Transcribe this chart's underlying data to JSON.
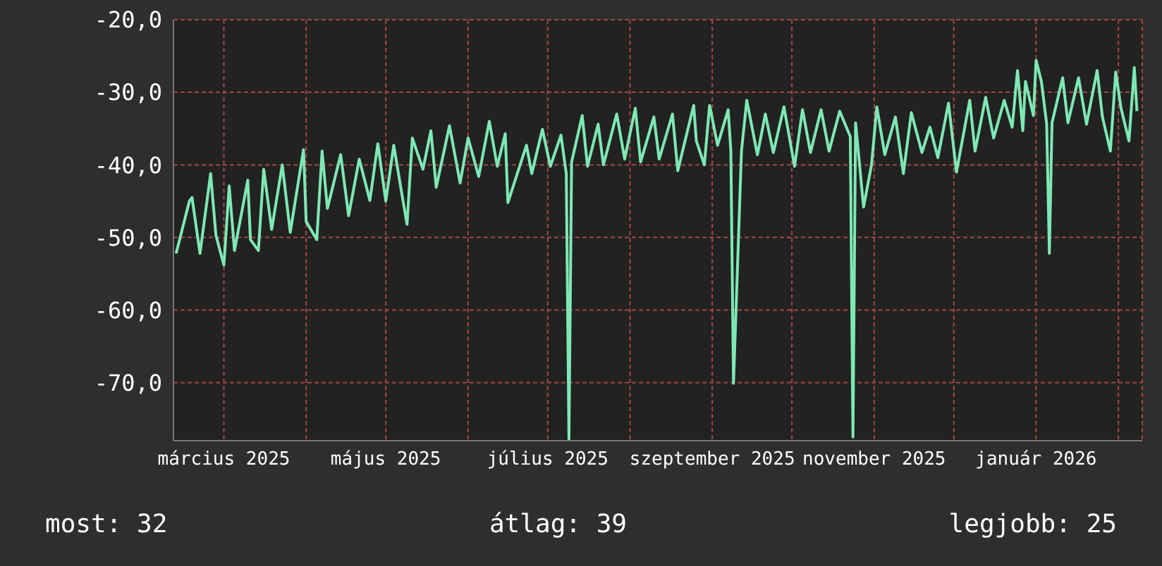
{
  "chart_data": {
    "type": "line",
    "x": [
      "2025-02-11",
      "2025-02-16",
      "2025-02-17",
      "2025-02-20",
      "2025-02-24",
      "2025-02-26",
      "2025-03-01",
      "2025-03-03",
      "2025-03-05",
      "2025-03-10",
      "2025-03-11",
      "2025-03-14",
      "2025-03-16",
      "2025-03-19",
      "2025-03-23",
      "2025-03-26",
      "2025-03-31",
      "2025-04-01",
      "2025-04-05",
      "2025-04-07",
      "2025-04-09",
      "2025-04-14",
      "2025-04-17",
      "2025-04-21",
      "2025-04-25",
      "2025-04-28",
      "2025-05-01",
      "2025-05-04",
      "2025-05-07",
      "2025-05-09",
      "2025-05-11",
      "2025-05-15",
      "2025-05-18",
      "2025-05-20",
      "2025-05-25",
      "2025-05-29",
      "2025-06-01",
      "2025-06-05",
      "2025-06-09",
      "2025-06-12",
      "2025-06-15",
      "2025-06-16",
      "2025-06-23",
      "2025-06-25",
      "2025-06-29",
      "2025-07-02",
      "2025-07-06",
      "2025-07-08",
      "2025-07-09",
      "2025-07-10",
      "2025-07-14",
      "2025-07-16",
      "2025-07-20",
      "2025-07-22",
      "2025-07-27",
      "2025-07-30",
      "2025-08-03",
      "2025-08-05",
      "2025-08-10",
      "2025-08-12",
      "2025-08-17",
      "2025-08-19",
      "2025-08-25",
      "2025-08-26",
      "2025-08-29",
      "2025-08-31",
      "2025-09-03",
      "2025-09-07",
      "2025-09-08",
      "2025-09-09",
      "2025-09-12",
      "2025-09-14",
      "2025-09-18",
      "2025-09-21",
      "2025-09-24",
      "2025-09-28",
      "2025-10-02",
      "2025-10-05",
      "2025-10-08",
      "2025-10-12",
      "2025-10-15",
      "2025-10-19",
      "2025-10-23",
      "2025-10-24",
      "2025-10-25",
      "2025-10-28",
      "2025-10-31",
      "2025-11-02",
      "2025-11-05",
      "2025-11-09",
      "2025-11-12",
      "2025-11-15",
      "2025-11-19",
      "2025-11-22",
      "2025-11-25",
      "2025-11-29",
      "2025-12-02",
      "2025-12-07",
      "2025-12-09",
      "2025-12-13",
      "2025-12-16",
      "2025-12-20",
      "2025-12-23",
      "2025-12-25",
      "2025-12-27",
      "2025-12-28",
      "2025-12-31",
      "2026-01-01",
      "2026-01-03",
      "2026-01-05",
      "2026-01-06",
      "2026-01-07",
      "2026-01-11",
      "2026-01-13",
      "2026-01-17",
      "2026-01-20",
      "2026-01-24",
      "2026-01-26",
      "2026-01-29",
      "2026-01-31",
      "2026-02-02",
      "2026-02-05",
      "2026-02-07",
      "2026-02-08"
    ],
    "series": [
      {
        "color": "#7ee8b4",
        "values": [
          -52.2,
          -45.0,
          -44.5,
          -52.2,
          -41.2,
          -49.7,
          -53.8,
          -42.9,
          -51.8,
          -42.1,
          -50.3,
          -51.8,
          -40.6,
          -48.9,
          -40.0,
          -49.3,
          -37.9,
          -47.8,
          -50.3,
          -38.1,
          -46.0,
          -38.6,
          -47.0,
          -39.2,
          -44.9,
          -37.1,
          -45.0,
          -37.3,
          -43.9,
          -48.2,
          -36.3,
          -40.6,
          -35.3,
          -43.1,
          -34.6,
          -42.5,
          -36.3,
          -41.6,
          -34.0,
          -40.2,
          -35.7,
          -45.2,
          -37.3,
          -41.2,
          -35.1,
          -40.2,
          -35.9,
          -41.2,
          -77.8,
          -39.6,
          -33.2,
          -40.2,
          -34.4,
          -40.0,
          -33.0,
          -39.2,
          -32.2,
          -39.6,
          -33.4,
          -39.2,
          -33.0,
          -40.8,
          -31.8,
          -36.7,
          -40.0,
          -31.8,
          -37.3,
          -32.4,
          -38.1,
          -70.1,
          -38.1,
          -31.1,
          -38.6,
          -33.0,
          -38.3,
          -32.0,
          -40.2,
          -32.4,
          -38.3,
          -32.4,
          -38.1,
          -32.6,
          -36.1,
          -77.5,
          -34.2,
          -45.8,
          -40.0,
          -32.0,
          -38.6,
          -33.4,
          -41.2,
          -32.8,
          -38.3,
          -34.8,
          -39.0,
          -31.5,
          -41.0,
          -31.1,
          -38.1,
          -30.7,
          -36.3,
          -31.1,
          -34.8,
          -27.0,
          -35.3,
          -28.5,
          -33.2,
          -25.6,
          -28.5,
          -34.4,
          -52.2,
          -34.2,
          -28.0,
          -34.2,
          -28.0,
          -34.4,
          -27.0,
          -33.4,
          -38.1,
          -27.2,
          -32.2,
          -36.7,
          -26.6,
          -32.6
        ]
      }
    ],
    "xlim": [
      "2025-02-10",
      "2026-02-10"
    ],
    "xticks": [
      {
        "value": "2025-03-01",
        "label": "március 2025"
      },
      {
        "value": "2025-04-01",
        "label": null
      },
      {
        "value": "2025-05-01",
        "label": "május 2025"
      },
      {
        "value": "2025-06-01",
        "label": null
      },
      {
        "value": "2025-07-01",
        "label": "július 2025"
      },
      {
        "value": "2025-08-01",
        "label": null
      },
      {
        "value": "2025-09-01",
        "label": "szeptember 2025"
      },
      {
        "value": "2025-10-01",
        "label": null
      },
      {
        "value": "2025-11-01",
        "label": "november 2025"
      },
      {
        "value": "2025-12-01",
        "label": null
      },
      {
        "value": "2026-01-01",
        "label": "január 2026"
      },
      {
        "value": "2026-02-01",
        "label": null
      }
    ],
    "ylim": [
      -78,
      -20
    ],
    "yticks": [
      {
        "value": -20,
        "label": "-20,0"
      },
      {
        "value": -30,
        "label": "-30,0"
      },
      {
        "value": -40,
        "label": "-40,0"
      },
      {
        "value": -50,
        "label": "-50,0"
      },
      {
        "value": -60,
        "label": "-60,0"
      },
      {
        "value": -70,
        "label": "-70,0"
      }
    ],
    "grid": true,
    "marker": "none",
    "line_style": "solid",
    "legend": false,
    "annotations": [
      "most: 32",
      "átlag: 39",
      "legjobb: 25"
    ]
  }
}
